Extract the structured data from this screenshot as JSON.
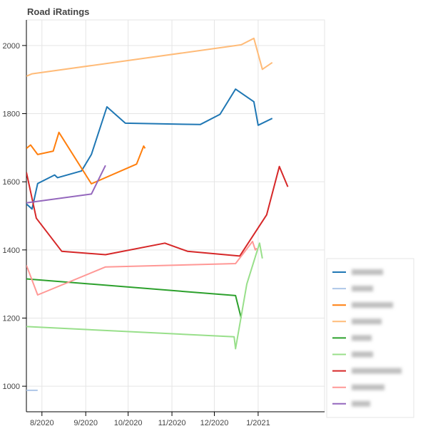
{
  "chart_data": {
    "type": "line",
    "title": "Road iRatings",
    "xlabel": "",
    "ylabel": "",
    "x_axis": {
      "type": "date",
      "range": [
        "2020-07-21",
        "2021-02-17"
      ],
      "ticks": [
        {
          "date": "2020-08-01",
          "label": "8/2020"
        },
        {
          "date": "2020-09-01",
          "label": "9/2020"
        },
        {
          "date": "2020-10-01",
          "label": "10/2020"
        },
        {
          "date": "2020-11-01",
          "label": "11/2020"
        },
        {
          "date": "2020-12-01",
          "label": "12/2020"
        },
        {
          "date": "2021-01-01",
          "label": "1/2021"
        }
      ]
    },
    "y_axis": {
      "range": [
        925,
        2075
      ],
      "ticks": [
        1000,
        1200,
        1400,
        1600,
        1800,
        2000
      ]
    },
    "grid": true,
    "legend_position": "bottom-right",
    "legend_labels_obscured": true,
    "series": [
      {
        "color": "#1f77b4",
        "points": [
          [
            "2020-07-21",
            1535
          ],
          [
            "2020-07-25",
            1520
          ],
          [
            "2020-07-29",
            1595
          ],
          [
            "2020-08-10",
            1620
          ],
          [
            "2020-08-12",
            1612
          ],
          [
            "2020-08-29",
            1632
          ],
          [
            "2020-09-05",
            1680
          ],
          [
            "2020-09-16",
            1820
          ],
          [
            "2020-09-29",
            1772
          ],
          [
            "2020-11-21",
            1768
          ],
          [
            "2020-12-05",
            1798
          ],
          [
            "2020-12-16",
            1872
          ],
          [
            "2020-12-29",
            1835
          ],
          [
            "2021-01-01",
            1766
          ],
          [
            "2021-01-11",
            1786
          ]
        ]
      },
      {
        "color": "#aec7e8",
        "points": [
          [
            "2020-07-21",
            988
          ],
          [
            "2020-07-29",
            988
          ]
        ]
      },
      {
        "color": "#ff7f0e",
        "points": [
          [
            "2020-07-21",
            1698
          ],
          [
            "2020-07-24",
            1708
          ],
          [
            "2020-07-29",
            1680
          ],
          [
            "2020-08-09",
            1690
          ],
          [
            "2020-08-13",
            1745
          ],
          [
            "2020-09-05",
            1594
          ],
          [
            "2020-10-07",
            1652
          ],
          [
            "2020-10-12",
            1705
          ],
          [
            "2020-10-13",
            1698
          ]
        ]
      },
      {
        "color": "#ffbb78",
        "points": [
          [
            "2020-07-21",
            1910
          ],
          [
            "2020-07-25",
            1917
          ],
          [
            "2020-12-20",
            2002
          ],
          [
            "2020-12-29",
            2021
          ],
          [
            "2021-01-04",
            1930
          ],
          [
            "2021-01-11",
            1950
          ]
        ]
      },
      {
        "color": "#2ca02c",
        "points": [
          [
            "2020-07-21",
            1315
          ],
          [
            "2020-12-16",
            1266
          ],
          [
            "2020-12-20",
            1200
          ]
        ]
      },
      {
        "color": "#98df8a",
        "points": [
          [
            "2020-07-21",
            1175
          ],
          [
            "2020-12-15",
            1145
          ],
          [
            "2020-12-16",
            1110
          ],
          [
            "2020-12-24",
            1300
          ],
          [
            "2020-12-30",
            1380
          ],
          [
            "2021-01-02",
            1420
          ],
          [
            "2021-01-04",
            1375
          ]
        ]
      },
      {
        "color": "#d62728",
        "points": [
          [
            "2020-07-21",
            1628
          ],
          [
            "2020-07-28",
            1493
          ],
          [
            "2020-08-15",
            1396
          ],
          [
            "2020-09-15",
            1386
          ],
          [
            "2020-10-27",
            1420
          ],
          [
            "2020-11-12",
            1396
          ],
          [
            "2020-12-19",
            1382
          ],
          [
            "2021-01-07",
            1503
          ],
          [
            "2021-01-16",
            1645
          ],
          [
            "2021-01-22",
            1585
          ]
        ]
      },
      {
        "color": "#ff9896",
        "points": [
          [
            "2020-07-21",
            1355
          ],
          [
            "2020-07-29",
            1268
          ],
          [
            "2020-09-15",
            1350
          ],
          [
            "2020-12-16",
            1360
          ],
          [
            "2020-12-28",
            1425
          ],
          [
            "2020-12-30",
            1400
          ],
          [
            "2020-12-31",
            1405
          ]
        ]
      },
      {
        "color": "#9467bd",
        "points": [
          [
            "2020-07-21",
            1538
          ],
          [
            "2020-09-05",
            1564
          ],
          [
            "2020-09-15",
            1648
          ]
        ]
      }
    ]
  }
}
